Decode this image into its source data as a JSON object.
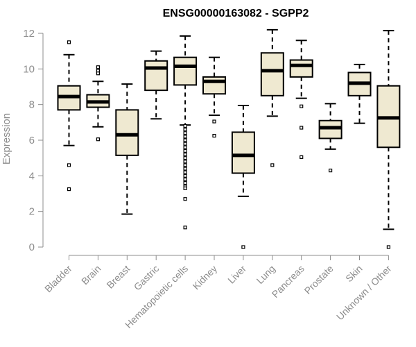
{
  "chart_data": {
    "type": "boxplot",
    "title": "ENSG00000163082 - SGPP2",
    "xlabel": "",
    "ylabel": "Expression",
    "ylim": [
      0,
      12
    ],
    "yticks": [
      0,
      2,
      4,
      6,
      8,
      10,
      12
    ],
    "box_color": "#efe9d1",
    "categories": [
      "Bladder",
      "Brain",
      "Breast",
      "Gastric",
      "Hematopoietic cells",
      "Kidney",
      "Liver",
      "Lung",
      "Pancreas",
      "Prostate",
      "Skin",
      "Unknown / Other"
    ],
    "boxes": [
      {
        "whisker_low": 5.7,
        "q1": 7.7,
        "median": 8.45,
        "q3": 9.05,
        "whisker_high": 10.8,
        "outliers": [
          11.5,
          4.6,
          3.25
        ]
      },
      {
        "whisker_low": 6.75,
        "q1": 7.85,
        "median": 8.15,
        "q3": 8.55,
        "whisker_high": 9.3,
        "outliers": [
          10.1,
          9.9,
          9.75,
          6.05
        ]
      },
      {
        "whisker_low": 1.85,
        "q1": 5.15,
        "median": 6.3,
        "q3": 7.7,
        "whisker_high": 9.15,
        "outliers": []
      },
      {
        "whisker_low": 7.2,
        "q1": 8.8,
        "median": 10.05,
        "q3": 10.45,
        "whisker_high": 11.0,
        "outliers": []
      },
      {
        "whisker_low": 6.85,
        "q1": 9.1,
        "median": 10.15,
        "q3": 10.65,
        "whisker_high": 11.85,
        "outliers": [
          6.8,
          6.6,
          6.4,
          6.2,
          6.0,
          5.8,
          5.6,
          5.4,
          5.2,
          5.0,
          4.8,
          4.6,
          4.4,
          4.2,
          4.0,
          3.8,
          3.6,
          3.4,
          3.3,
          2.7,
          1.1
        ]
      },
      {
        "whisker_low": 7.4,
        "q1": 8.6,
        "median": 9.3,
        "q3": 9.55,
        "whisker_high": 10.65,
        "outliers": [
          7.05,
          6.25
        ]
      },
      {
        "whisker_low": 2.85,
        "q1": 4.15,
        "median": 5.15,
        "q3": 6.45,
        "whisker_high": 7.95,
        "outliers": [
          0.0
        ]
      },
      {
        "whisker_low": 7.35,
        "q1": 8.5,
        "median": 9.9,
        "q3": 10.9,
        "whisker_high": 12.2,
        "outliers": [
          4.6
        ]
      },
      {
        "whisker_low": 8.35,
        "q1": 9.55,
        "median": 10.2,
        "q3": 10.5,
        "whisker_high": 11.6,
        "outliers": [
          7.9,
          6.7,
          5.05
        ]
      },
      {
        "whisker_low": 5.5,
        "q1": 6.1,
        "median": 6.7,
        "q3": 7.1,
        "whisker_high": 8.05,
        "outliers": [
          4.3
        ]
      },
      {
        "whisker_low": 6.95,
        "q1": 8.5,
        "median": 9.2,
        "q3": 9.8,
        "whisker_high": 10.25,
        "outliers": []
      },
      {
        "whisker_low": 1.0,
        "q1": 5.6,
        "median": 7.25,
        "q3": 9.05,
        "whisker_high": 12.15,
        "outliers": [
          0.0
        ]
      }
    ]
  }
}
